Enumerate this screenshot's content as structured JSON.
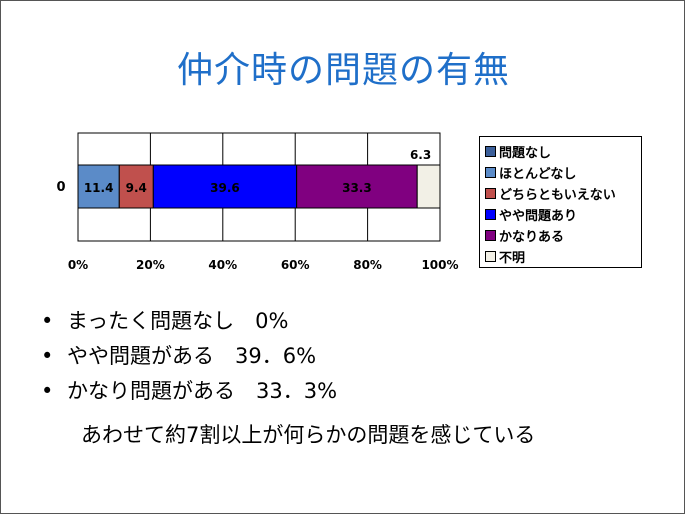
{
  "slide": {
    "title": "仲介時の問題の有無",
    "bullets": [
      "まったく問題なし　0%",
      "やや問題がある　39．6%",
      "かなり問題がある　33．3%"
    ],
    "bullet_symbol": "•",
    "summary": "あわせて約7割以上が何らかの問題を感じている"
  },
  "chart_data": {
    "type": "bar",
    "orientation": "horizontal",
    "stacked": "percent",
    "categories": [
      "0"
    ],
    "xlim": [
      0,
      100
    ],
    "x_ticks": [
      "0%",
      "20%",
      "40%",
      "60%",
      "80%",
      "100%"
    ],
    "grid": true,
    "legend_position": "right",
    "series": [
      {
        "name": "問題なし",
        "values": [
          0
        ],
        "label": "",
        "color": "#3b5f9a"
      },
      {
        "name": "ほとんどなし",
        "values": [
          11.4
        ],
        "label": "11.4",
        "color": "#5b8bc8"
      },
      {
        "name": "どちらともいえない",
        "values": [
          9.4
        ],
        "label": "9.4",
        "color": "#c0504d"
      },
      {
        "name": "やや問題あり",
        "values": [
          39.6
        ],
        "label": "39.6",
        "color": "#0000ff"
      },
      {
        "name": "かなりある",
        "values": [
          33.3
        ],
        "label": "33.3",
        "color": "#800080"
      },
      {
        "name": "不明",
        "values": [
          6.3
        ],
        "label": "6.3",
        "color": "#f2f0e6"
      }
    ]
  }
}
